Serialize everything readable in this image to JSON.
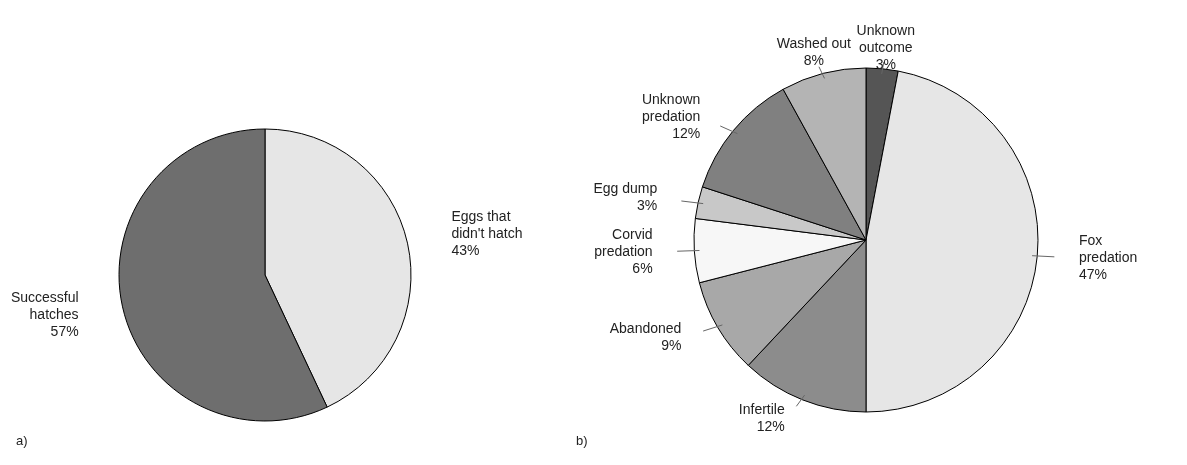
{
  "chart_data": [
    {
      "type": "pie",
      "categories": [
        "Eggs that didn't hatch",
        "Successful hatches"
      ],
      "values": [
        43,
        57
      ],
      "value_labels": [
        "43%",
        "57%"
      ],
      "colors": [
        "#e6e6e6",
        "#6e6e6e"
      ],
      "annotations": [
        "a)"
      ]
    },
    {
      "type": "pie",
      "categories": [
        "Unknown outcome",
        "Fox predation",
        "Infertile",
        "Abandoned",
        "Corvid predation",
        "Egg dump",
        "Unknown predation",
        "Washed out"
      ],
      "values": [
        3,
        47,
        12,
        9,
        6,
        3,
        12,
        8
      ],
      "value_labels": [
        "3%",
        "47%",
        "12%",
        "9%",
        "6%",
        "3%",
        "12%",
        "8%"
      ],
      "colors": [
        "#555555",
        "#e6e6e6",
        "#8c8c8c",
        "#a8a8a8",
        "#f7f7f7",
        "#c8c8c8",
        "#808080",
        "#b4b4b4"
      ],
      "annotations": [
        "b)"
      ]
    }
  ]
}
